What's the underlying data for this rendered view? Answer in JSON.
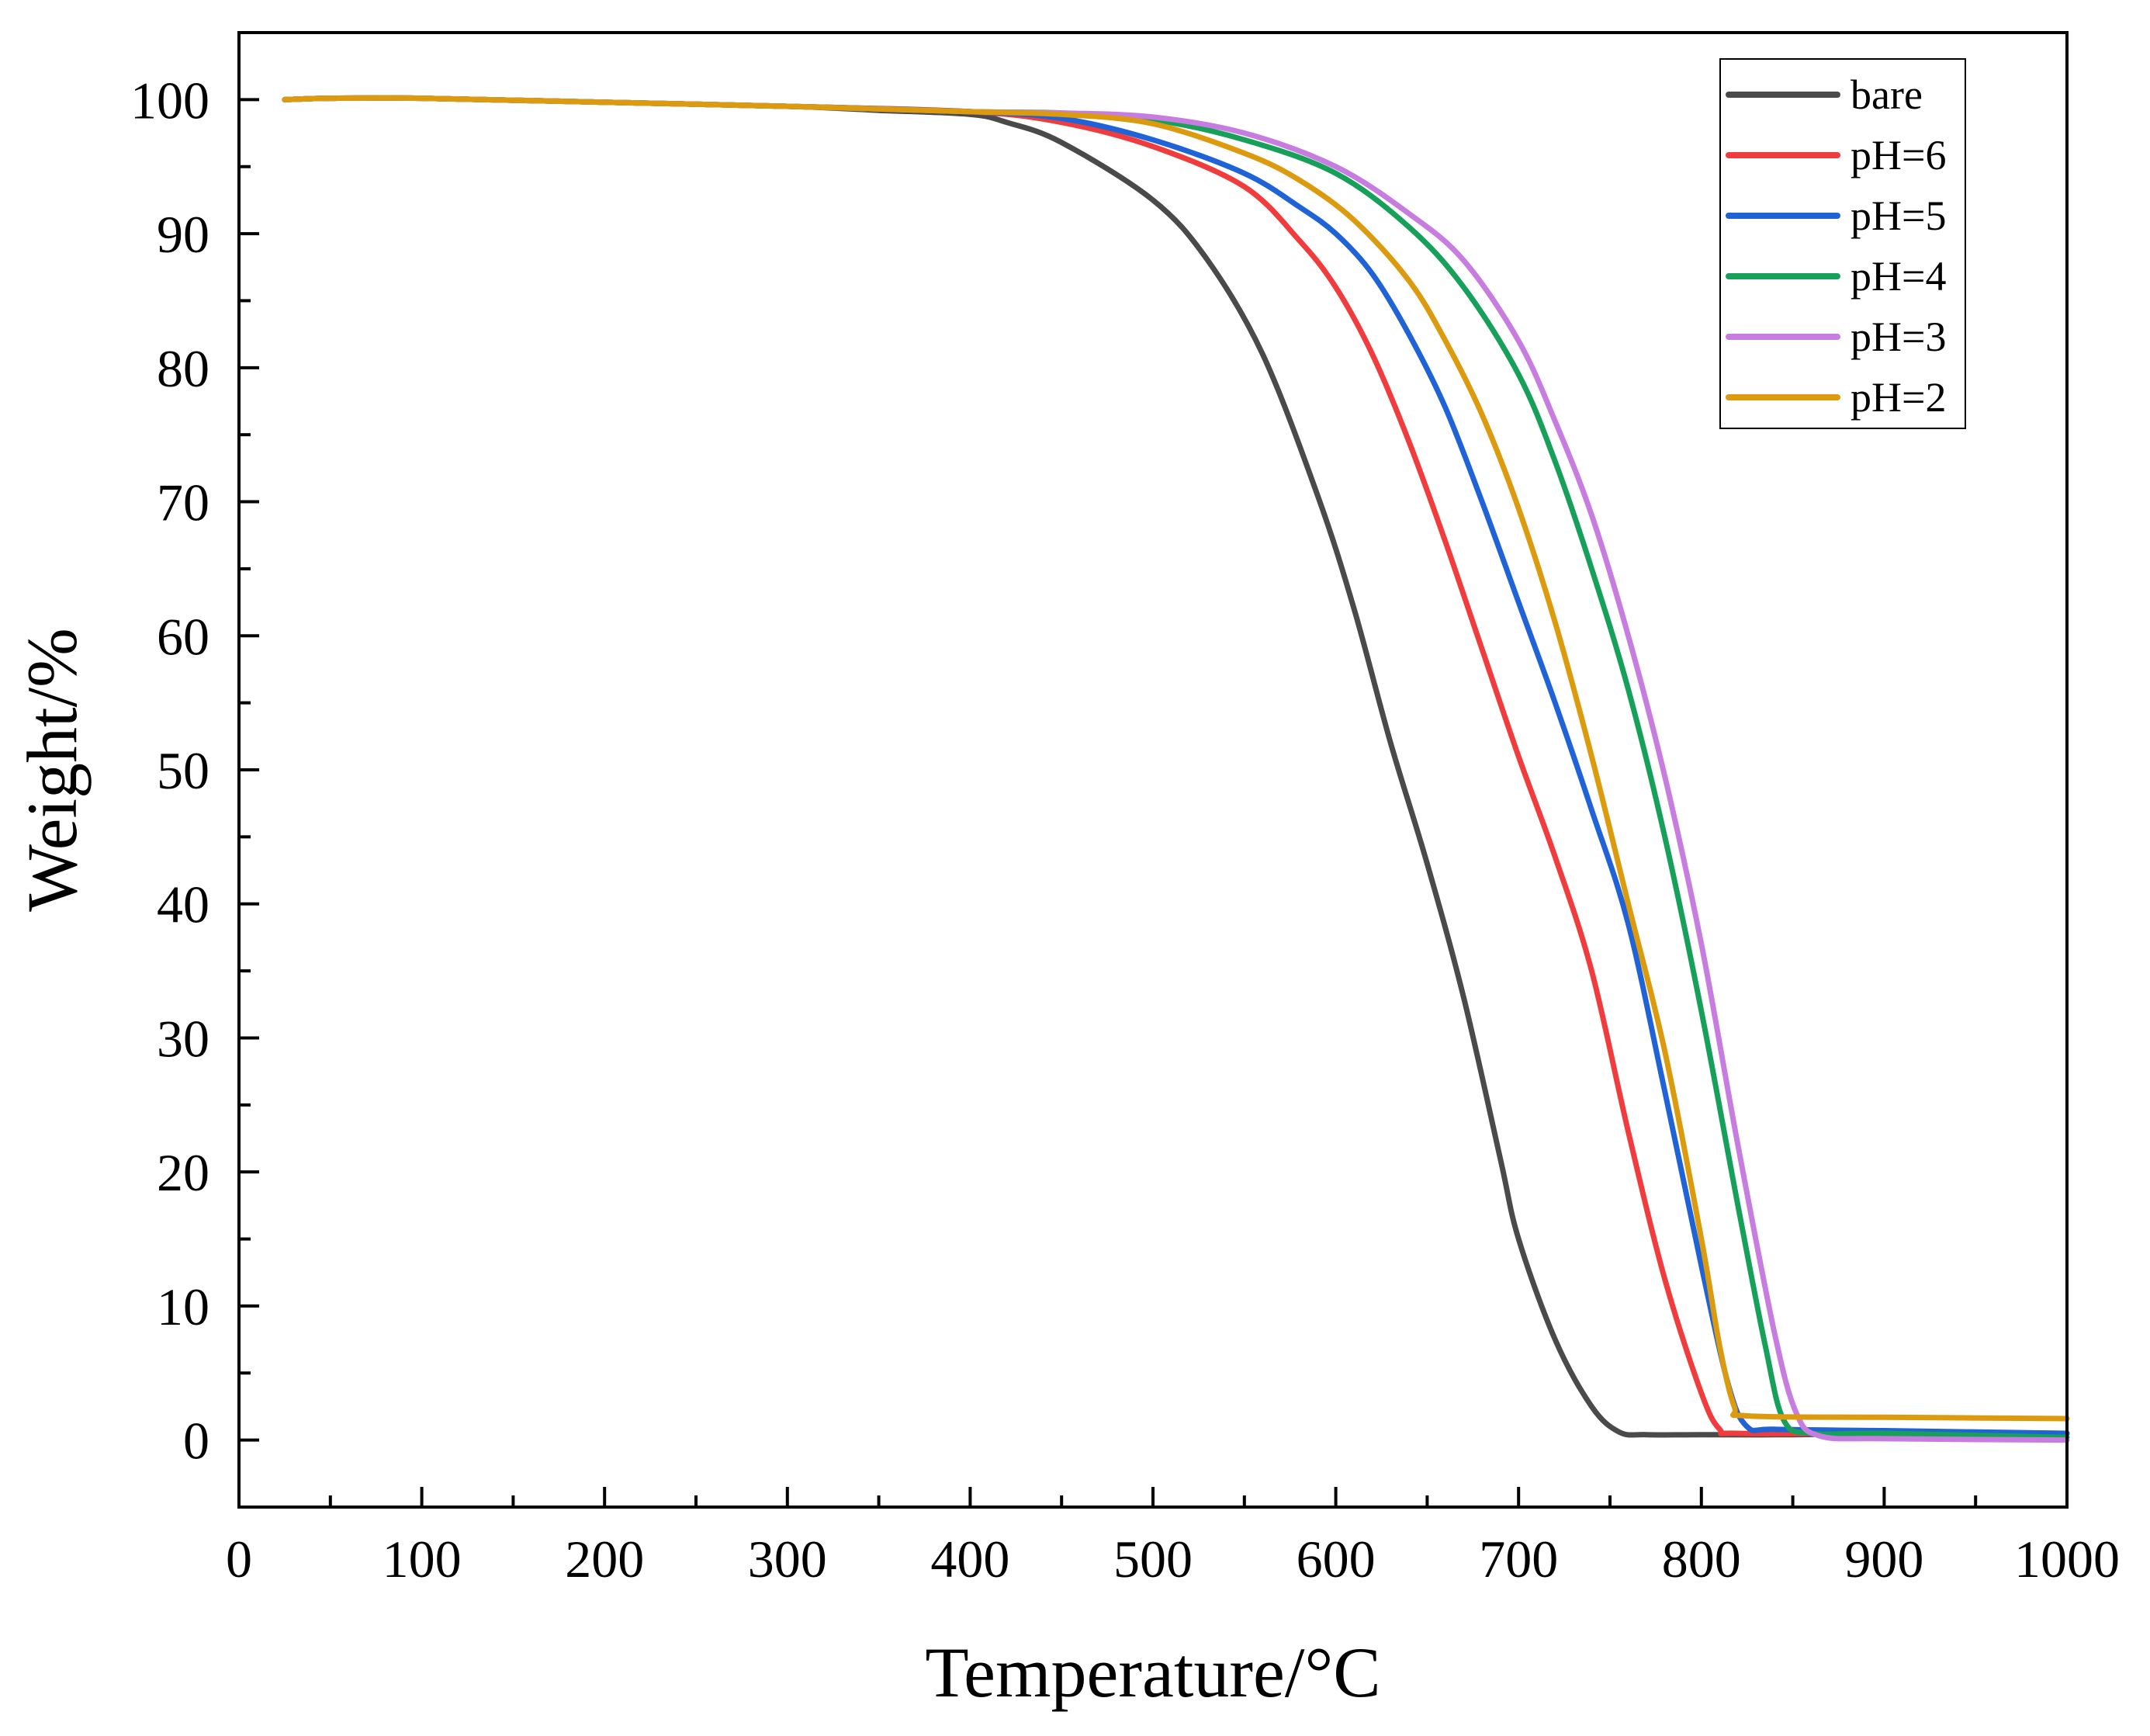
{
  "chart_data": {
    "type": "line",
    "title": "",
    "xlabel": "Temperature/°C",
    "ylabel": "Weight/%",
    "xlim": [
      0,
      1000
    ],
    "ylim": [
      -5,
      105
    ],
    "xticks": [
      0,
      100,
      200,
      300,
      400,
      500,
      600,
      700,
      800,
      900,
      1000
    ],
    "yticks": [
      0,
      10,
      20,
      30,
      40,
      50,
      60,
      70,
      80,
      90,
      100
    ],
    "xtick_labels": [
      "0",
      "100",
      "200",
      "300",
      "400",
      "500",
      "600",
      "700",
      "800",
      "900",
      "1000"
    ],
    "ytick_labels": [
      "0",
      "10",
      "20",
      "30",
      "40",
      "50",
      "60",
      "70",
      "80",
      "90",
      "100"
    ],
    "grid": false,
    "legend_position": "top-right",
    "series": [
      {
        "name": "bare",
        "color": "#4a4a4a",
        "points": [
          [
            25,
            100
          ],
          [
            50,
            100.1
          ],
          [
            100,
            100.1
          ],
          [
            200,
            99.8
          ],
          [
            300,
            99.5
          ],
          [
            350,
            99.2
          ],
          [
            400,
            98.9
          ],
          [
            420,
            98.3
          ],
          [
            450,
            96.8
          ],
          [
            500,
            92.5
          ],
          [
            530,
            88
          ],
          [
            560,
            81
          ],
          [
            590,
            70.5
          ],
          [
            610,
            62
          ],
          [
            630,
            52
          ],
          [
            650,
            43
          ],
          [
            670,
            33
          ],
          [
            690,
            21
          ],
          [
            700,
            15
          ],
          [
            720,
            7.5
          ],
          [
            740,
            2.5
          ],
          [
            755,
            0.6
          ],
          [
            770,
            0.4
          ],
          [
            800,
            0.4
          ],
          [
            850,
            0.4
          ],
          [
            900,
            0.5
          ],
          [
            1000,
            0.5
          ]
        ]
      },
      {
        "name": "pH=6",
        "color": "#f03c3c",
        "points": [
          [
            25,
            100
          ],
          [
            50,
            100.1
          ],
          [
            100,
            100.1
          ],
          [
            200,
            99.8
          ],
          [
            300,
            99.5
          ],
          [
            400,
            99.1
          ],
          [
            450,
            98.3
          ],
          [
            500,
            96.5
          ],
          [
            550,
            93.5
          ],
          [
            580,
            89.5
          ],
          [
            600,
            86
          ],
          [
            620,
            81
          ],
          [
            640,
            74.5
          ],
          [
            660,
            67
          ],
          [
            680,
            59
          ],
          [
            700,
            51
          ],
          [
            720,
            43.5
          ],
          [
            740,
            35
          ],
          [
            760,
            23
          ],
          [
            780,
            12
          ],
          [
            800,
            3.5
          ],
          [
            810,
            0.8
          ],
          [
            820,
            0.5
          ],
          [
            900,
            0.5
          ],
          [
            1000,
            0.5
          ]
        ]
      },
      {
        "name": "pH=5",
        "color": "#1f63d6",
        "points": [
          [
            25,
            100
          ],
          [
            50,
            100.1
          ],
          [
            100,
            100.1
          ],
          [
            200,
            99.8
          ],
          [
            300,
            99.5
          ],
          [
            400,
            99.1
          ],
          [
            450,
            98.6
          ],
          [
            500,
            97
          ],
          [
            550,
            94.5
          ],
          [
            580,
            92
          ],
          [
            600,
            90
          ],
          [
            620,
            87
          ],
          [
            640,
            82.5
          ],
          [
            660,
            77
          ],
          [
            680,
            70
          ],
          [
            700,
            62.5
          ],
          [
            720,
            55
          ],
          [
            740,
            47
          ],
          [
            760,
            38.5
          ],
          [
            780,
            26
          ],
          [
            800,
            13
          ],
          [
            815,
            4
          ],
          [
            825,
            1
          ],
          [
            840,
            0.8
          ],
          [
            900,
            0.7
          ],
          [
            1000,
            0.5
          ]
        ]
      },
      {
        "name": "pH=4",
        "color": "#16a05a",
        "points": [
          [
            25,
            100
          ],
          [
            50,
            100.1
          ],
          [
            100,
            100.1
          ],
          [
            200,
            99.8
          ],
          [
            300,
            99.5
          ],
          [
            400,
            99.1
          ],
          [
            450,
            99
          ],
          [
            500,
            98.5
          ],
          [
            550,
            97
          ],
          [
            600,
            94.5
          ],
          [
            640,
            90.5
          ],
          [
            670,
            86
          ],
          [
            700,
            79.5
          ],
          [
            720,
            73
          ],
          [
            740,
            65
          ],
          [
            760,
            56
          ],
          [
            780,
            45
          ],
          [
            800,
            32
          ],
          [
            820,
            17.5
          ],
          [
            835,
            7
          ],
          [
            845,
            1.5
          ],
          [
            860,
            0.5
          ],
          [
            900,
            0.5
          ],
          [
            1000,
            0.2
          ]
        ]
      },
      {
        "name": "pH=3",
        "color": "#c77ce0",
        "points": [
          [
            25,
            100
          ],
          [
            50,
            100.1
          ],
          [
            100,
            100.1
          ],
          [
            200,
            99.8
          ],
          [
            300,
            99.5
          ],
          [
            400,
            99.1
          ],
          [
            450,
            99
          ],
          [
            500,
            98.7
          ],
          [
            550,
            97.5
          ],
          [
            600,
            95
          ],
          [
            640,
            91.5
          ],
          [
            670,
            88
          ],
          [
            700,
            82
          ],
          [
            720,
            76
          ],
          [
            740,
            69
          ],
          [
            760,
            60
          ],
          [
            780,
            49.5
          ],
          [
            800,
            37
          ],
          [
            820,
            22
          ],
          [
            840,
            8
          ],
          [
            852,
            2
          ],
          [
            865,
            0.3
          ],
          [
            900,
            0.1
          ],
          [
            1000,
            0
          ]
        ]
      },
      {
        "name": "pH=2",
        "color": "#dc9a0e",
        "points": [
          [
            25,
            100
          ],
          [
            50,
            100.1
          ],
          [
            100,
            100.1
          ],
          [
            200,
            99.8
          ],
          [
            300,
            99.5
          ],
          [
            400,
            99.1
          ],
          [
            450,
            98.9
          ],
          [
            500,
            98.2
          ],
          [
            550,
            96
          ],
          [
            580,
            94
          ],
          [
            610,
            91
          ],
          [
            640,
            86.5
          ],
          [
            660,
            82
          ],
          [
            680,
            76.5
          ],
          [
            700,
            69.5
          ],
          [
            720,
            61
          ],
          [
            740,
            51
          ],
          [
            760,
            40
          ],
          [
            780,
            29
          ],
          [
            800,
            15
          ],
          [
            810,
            7
          ],
          [
            818,
            2.5
          ],
          [
            825,
            1.8
          ],
          [
            900,
            1.7
          ],
          [
            1000,
            1.6
          ]
        ]
      }
    ]
  }
}
